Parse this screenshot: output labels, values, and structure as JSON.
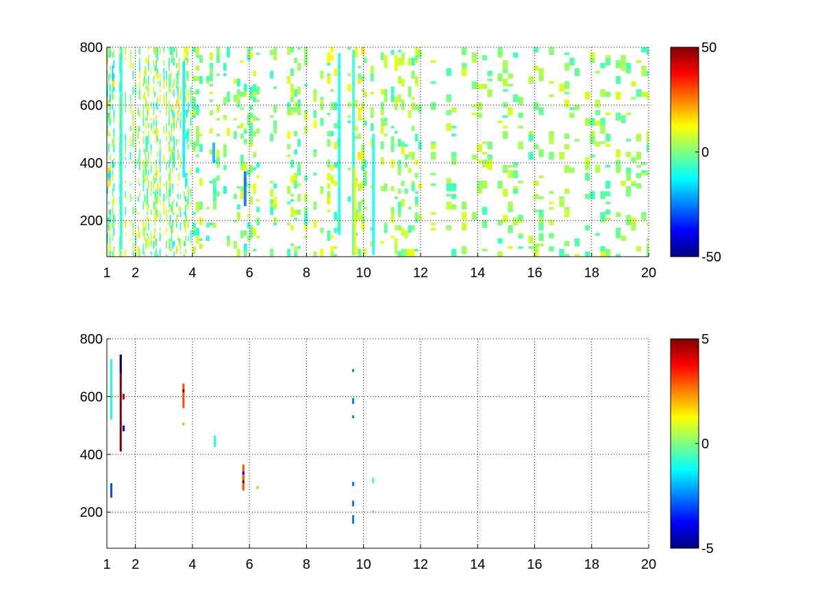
{
  "chart_data": [
    {
      "type": "heatmap",
      "title": "",
      "xlabel": "",
      "ylabel": "",
      "xlim": [
        1,
        20
      ],
      "ylim": [
        75,
        800
      ],
      "xticks": [
        1,
        2,
        4,
        6,
        8,
        10,
        12,
        14,
        16,
        18,
        20
      ],
      "yticks": [
        200,
        400,
        600,
        800
      ],
      "grid": true,
      "colormap": "jet",
      "clim": [
        -50,
        50
      ],
      "colorbar_ticks": [
        -50,
        0,
        50
      ],
      "colorbar_placement": "right",
      "density_profile": [
        {
          "x0": 1.0,
          "x1": 1.25,
          "density": 0.55,
          "mean": 0,
          "spread": 18
        },
        {
          "x0": 1.25,
          "x1": 1.45,
          "density": 0.75,
          "mean": 3,
          "spread": 12
        },
        {
          "x0": 1.45,
          "x1": 3.2,
          "density": 0.45,
          "mean": 2,
          "spread": 14
        },
        {
          "x0": 3.2,
          "x1": 4.0,
          "density": 0.4,
          "mean": 1,
          "spread": 15
        },
        {
          "x0": 4.0,
          "x1": 6.0,
          "density": 0.3,
          "mean": 0,
          "spread": 10
        },
        {
          "x0": 6.0,
          "x1": 8.0,
          "density": 0.33,
          "mean": 2,
          "spread": 10
        },
        {
          "x0": 8.0,
          "x1": 10.0,
          "density": 0.3,
          "mean": 3,
          "spread": 12
        },
        {
          "x0": 10.0,
          "x1": 12.0,
          "density": 0.3,
          "mean": 2,
          "spread": 9
        },
        {
          "x0": 12.0,
          "x1": 20.0,
          "density": 0.22,
          "mean": 2,
          "spread": 8
        }
      ],
      "streaks": [
        {
          "x": 1.45,
          "y0": 100,
          "y1": 780,
          "value": -10
        },
        {
          "x": 3.65,
          "y0": 350,
          "y1": 750,
          "value": -14
        },
        {
          "x": 4.7,
          "y0": 400,
          "y1": 470,
          "value": -20
        },
        {
          "x": 5.8,
          "y0": 250,
          "y1": 370,
          "value": -28
        },
        {
          "x": 9.1,
          "y0": 150,
          "y1": 780,
          "value": -12
        },
        {
          "x": 9.6,
          "y0": 80,
          "y1": 790,
          "value": -8
        },
        {
          "x": 9.65,
          "y0": 80,
          "y1": 380,
          "value": 14
        },
        {
          "x": 10.3,
          "y0": 80,
          "y1": 500,
          "value": -12
        }
      ]
    },
    {
      "type": "heatmap",
      "title": "",
      "xlabel": "",
      "ylabel": "",
      "xlim": [
        1,
        20
      ],
      "ylim": [
        75,
        800
      ],
      "xticks": [
        1,
        2,
        4,
        6,
        8,
        10,
        12,
        14,
        16,
        18,
        20
      ],
      "yticks": [
        200,
        400,
        600,
        800
      ],
      "grid": true,
      "colormap": "jet",
      "clim": [
        -5,
        5
      ],
      "colorbar_ticks": [
        -5,
        0,
        5
      ],
      "colorbar_placement": "right",
      "segments": [
        {
          "x": 1.12,
          "y0": 520,
          "y1": 730,
          "value": -1
        },
        {
          "x": 1.12,
          "y0": 250,
          "y1": 300,
          "value": -3
        },
        {
          "x": 1.45,
          "y0": 410,
          "y1": 745,
          "value": 5
        },
        {
          "x": 1.45,
          "y0": 680,
          "y1": 745,
          "value": -5
        },
        {
          "x": 1.55,
          "y0": 480,
          "y1": 500,
          "value": -4
        },
        {
          "x": 1.55,
          "y0": 590,
          "y1": 610,
          "value": 4
        },
        {
          "x": 3.65,
          "y0": 560,
          "y1": 645,
          "value": 3
        },
        {
          "x": 3.65,
          "y0": 615,
          "y1": 625,
          "value": 5
        },
        {
          "x": 3.65,
          "y0": 500,
          "y1": 510,
          "value": 2
        },
        {
          "x": 4.75,
          "y0": 425,
          "y1": 465,
          "value": -1
        },
        {
          "x": 5.75,
          "y0": 275,
          "y1": 365,
          "value": 3
        },
        {
          "x": 5.75,
          "y0": 330,
          "y1": 340,
          "value": -4
        },
        {
          "x": 5.75,
          "y0": 300,
          "y1": 310,
          "value": 5
        },
        {
          "x": 6.25,
          "y0": 280,
          "y1": 290,
          "value": 2
        },
        {
          "x": 9.6,
          "y0": 160,
          "y1": 190,
          "value": -2.5
        },
        {
          "x": 9.6,
          "y0": 220,
          "y1": 240,
          "value": -2.5
        },
        {
          "x": 9.6,
          "y0": 290,
          "y1": 305,
          "value": -2.5
        },
        {
          "x": 9.6,
          "y0": 525,
          "y1": 535,
          "value": -2.5
        },
        {
          "x": 9.6,
          "y0": 575,
          "y1": 595,
          "value": -2.5
        },
        {
          "x": 9.6,
          "y0": 685,
          "y1": 695,
          "value": -2.5
        },
        {
          "x": 10.3,
          "y0": 300,
          "y1": 320,
          "value": -0.5
        },
        {
          "x": 10.3,
          "y0": 200,
          "y1": 205,
          "value": 2
        }
      ]
    }
  ]
}
